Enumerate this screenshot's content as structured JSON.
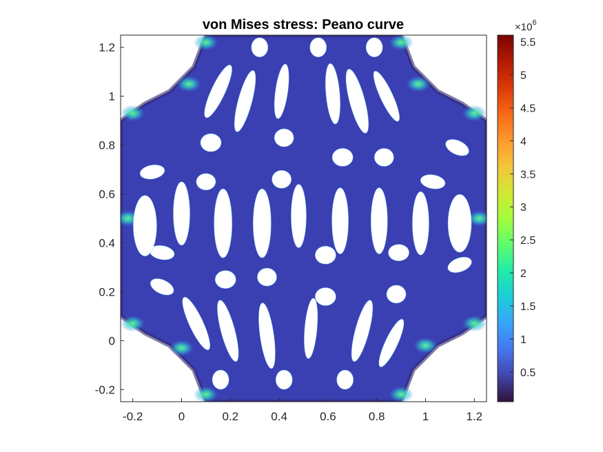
{
  "chart_data": {
    "type": "heatmap",
    "title": "von Mises stress: Peano curve",
    "xlim": [
      -0.25,
      1.25
    ],
    "ylim": [
      -0.25,
      1.25
    ],
    "x_ticks": [
      "-0.2",
      "0",
      "0.2",
      "0.4",
      "0.6",
      "0.8",
      "1",
      "1.2"
    ],
    "y_ticks": [
      "-0.2",
      "0",
      "0.2",
      "0.4",
      "0.6",
      "0.8",
      "1",
      "1.2"
    ],
    "grid": false,
    "colorbar": {
      "colormap": "turbo",
      "exponent_label": "×10",
      "exponent_power": "6",
      "range": [
        0.05,
        5.6
      ],
      "ticks": [
        "0.5",
        "1",
        "1.5",
        "2",
        "2.5",
        "3",
        "3.5",
        "4",
        "4.5",
        "5",
        "5.5"
      ],
      "tick_values": [
        0.5,
        1,
        1.5,
        2,
        2.5,
        3,
        3.5,
        4,
        4.5,
        5,
        5.5
      ]
    },
    "field": {
      "base_color": "#3a3fb1",
      "low_color": "#30246b",
      "hotspot_color": "#40f0c0"
    }
  }
}
